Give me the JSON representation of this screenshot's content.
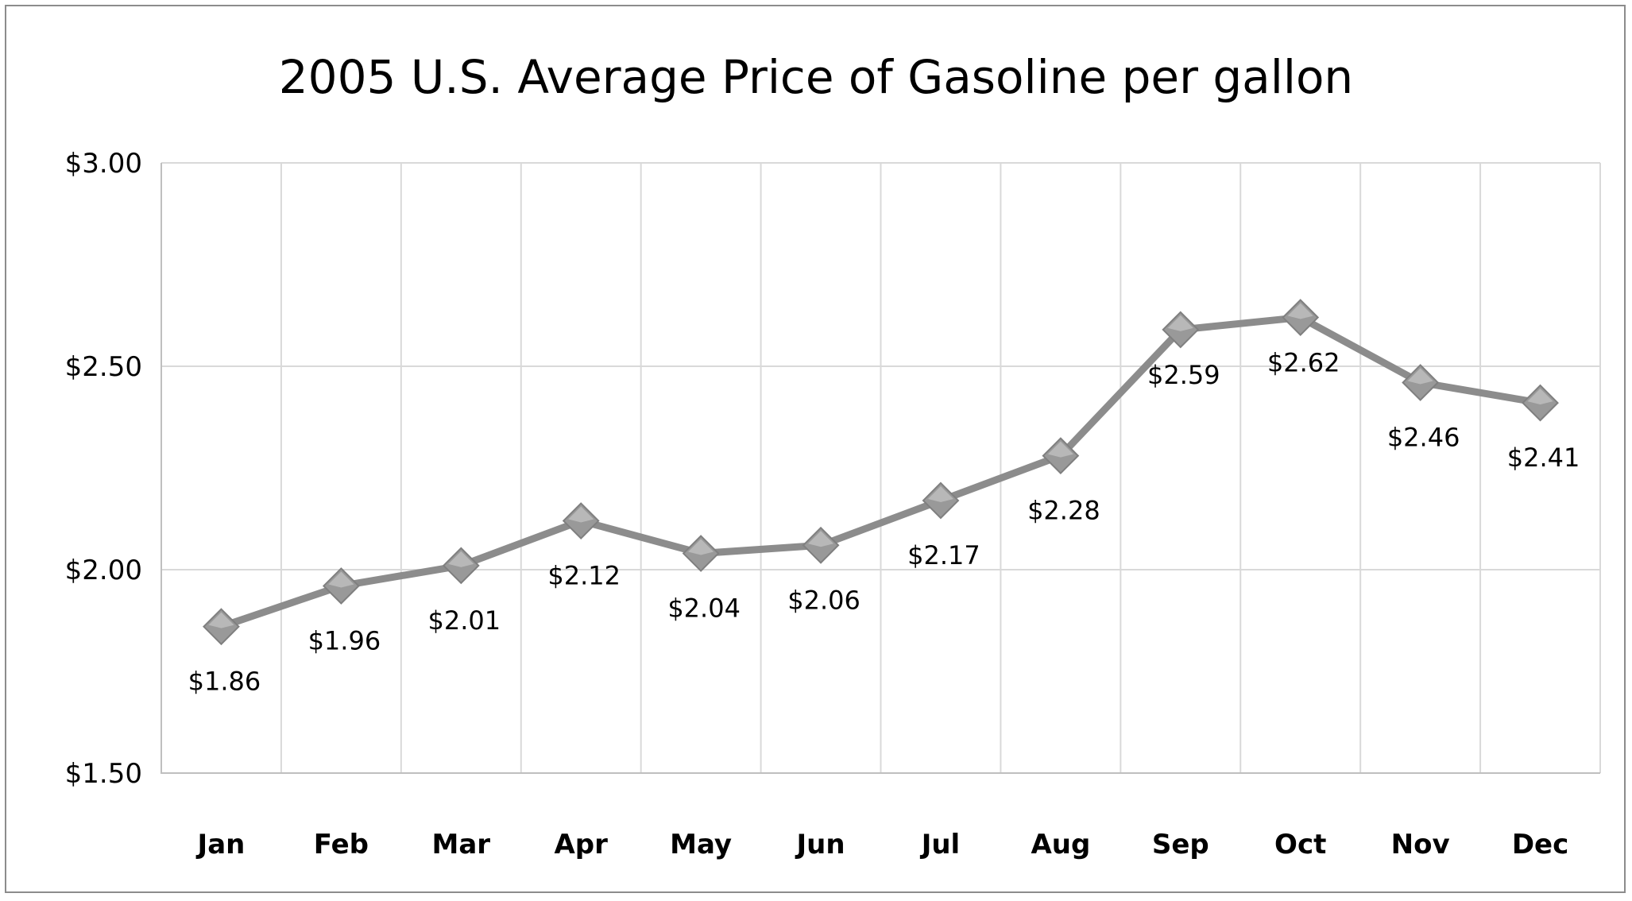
{
  "chart_data": {
    "type": "line",
    "title": "2005 U.S. Average Price of Gasoline per gallon",
    "xlabel": "",
    "ylabel": "",
    "categories": [
      "Jan",
      "Feb",
      "Mar",
      "Apr",
      "May",
      "Jun",
      "Jul",
      "Aug",
      "Sep",
      "Oct",
      "Nov",
      "Dec"
    ],
    "series": [
      {
        "values": [
          1.86,
          1.96,
          2.01,
          2.12,
          2.04,
          2.06,
          2.17,
          2.28,
          2.59,
          2.62,
          2.46,
          2.41
        ],
        "data_labels": [
          "$1.86",
          "$1.96",
          "$2.01",
          "$2.12",
          "$2.04",
          "$2.06",
          "$2.17",
          "$2.28",
          "$2.59",
          "$2.62",
          "$2.46",
          "$2.41"
        ],
        "color": "#8c8c8c",
        "marker": "diamond"
      }
    ],
    "ylim": [
      1.5,
      3.0
    ],
    "yticks": [
      1.5,
      2.0,
      2.5,
      3.0
    ],
    "ytick_labels": [
      "$1.50",
      "$2.00",
      "$2.50",
      "$3.00"
    ],
    "grid": true,
    "legend": "none"
  },
  "colors": {
    "line": "#8c8c8c",
    "marker": "#999999",
    "grid": "#d9d9d9",
    "axis": "#bfbfbf",
    "frame": "#8c8c8c"
  }
}
